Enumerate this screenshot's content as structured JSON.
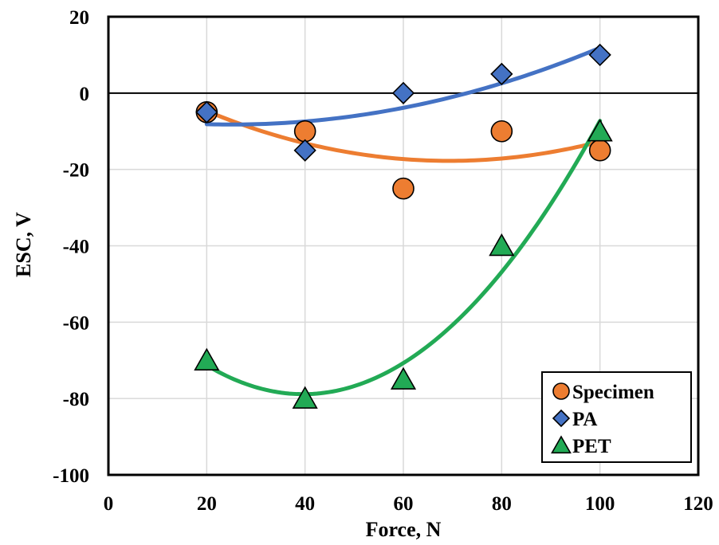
{
  "chart_data": {
    "type": "scatter",
    "xlabel": "Force, N",
    "ylabel": "ESC, V",
    "xlim": [
      0,
      120
    ],
    "ylim": [
      -100,
      20
    ],
    "xticks": [
      0,
      20,
      40,
      60,
      80,
      100,
      120
    ],
    "yticks": [
      20,
      0,
      -20,
      -40,
      -60,
      -80,
      -100
    ],
    "grid": true,
    "legend_position": "bottom-right",
    "series": [
      {
        "name": "Specimen",
        "marker": "circle",
        "color": "#ED7D31",
        "x": [
          20,
          40,
          60,
          80,
          100
        ],
        "y": [
          -5,
          -10,
          -25,
          -10,
          -15
        ],
        "trendline": "polynomial-2"
      },
      {
        "name": "PA",
        "marker": "diamond",
        "color": "#4472C4",
        "x": [
          20,
          40,
          60,
          80,
          100
        ],
        "y": [
          -5,
          -15,
          0,
          5,
          10
        ],
        "trendline": "polynomial-2"
      },
      {
        "name": "PET",
        "marker": "triangle",
        "color": "#22AA55",
        "x": [
          20,
          40,
          60,
          80,
          100
        ],
        "y": [
          -70,
          -80,
          -75,
          -40,
          -10
        ],
        "trendline": "polynomial-2"
      }
    ]
  }
}
